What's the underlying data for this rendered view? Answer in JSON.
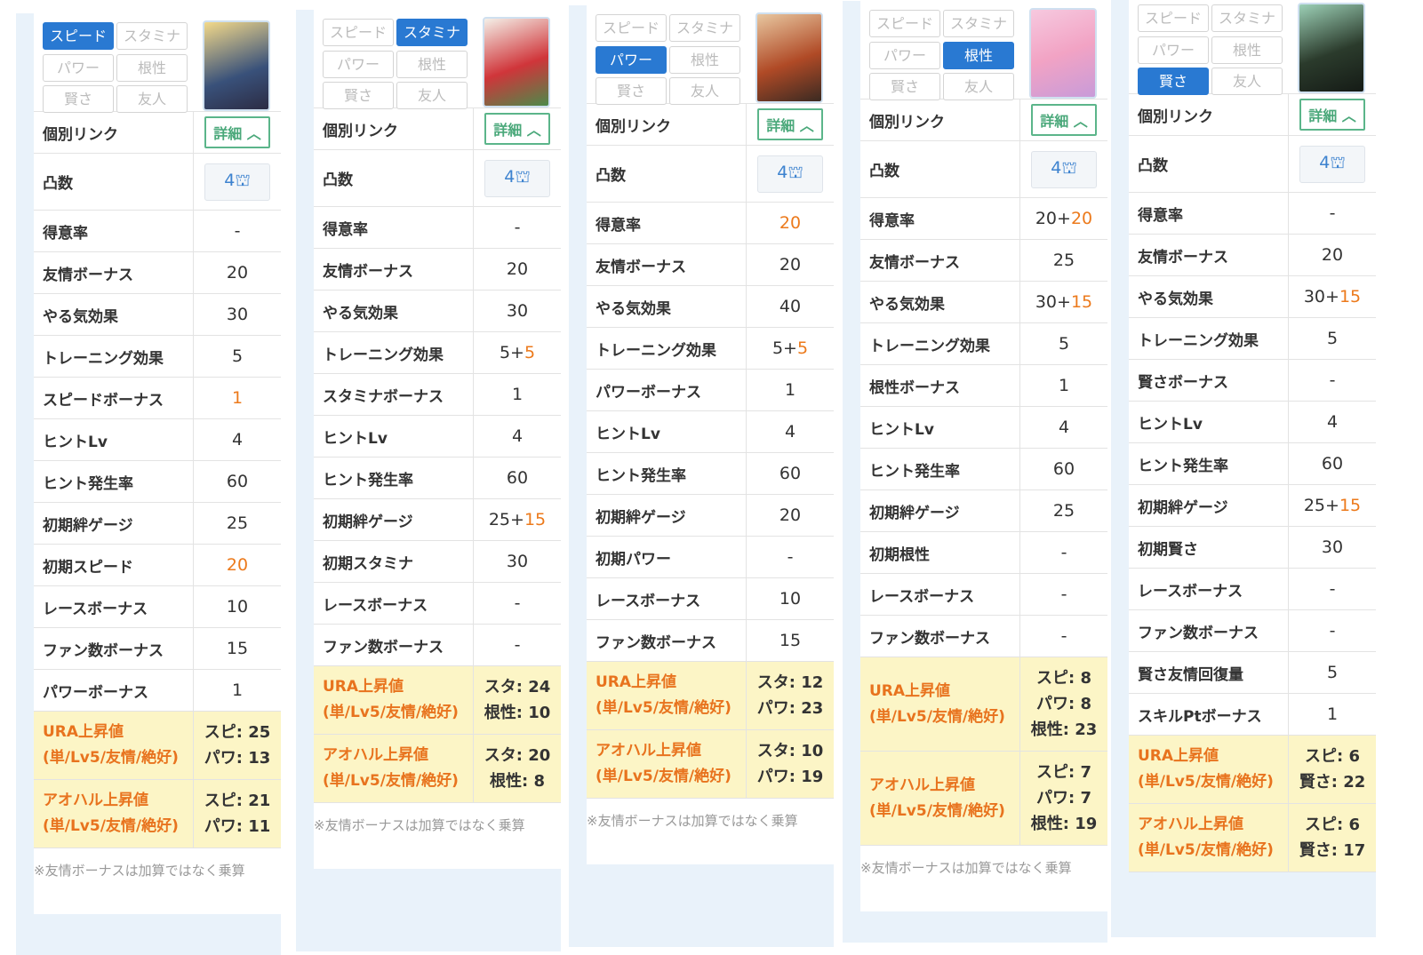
{
  "tabs": [
    "スピード",
    "スタミナ",
    "パワー",
    "根性",
    "賢さ",
    "友人"
  ],
  "link_label": "個別リンク",
  "link_button": "詳細",
  "limit_label": "凸数",
  "panels": [
    {
      "active": 0,
      "limit_break": "4",
      "rows": [
        {
          "label": "得意率",
          "value": "-"
        },
        {
          "label": "友情ボーナス",
          "value": "20"
        },
        {
          "label": "やる気効果",
          "value": "30"
        },
        {
          "label": "トレーニング効果",
          "value": "5"
        },
        {
          "label": "スピードボーナス",
          "accent": "1"
        },
        {
          "label": "ヒントLv",
          "value": "4"
        },
        {
          "label": "ヒント発生率",
          "value": "60"
        },
        {
          "label": "初期絆ゲージ",
          "value": "25"
        },
        {
          "label": "初期スピード",
          "accent": "20"
        },
        {
          "label": "レースボーナス",
          "value": "10"
        },
        {
          "label": "ファン数ボーナス",
          "value": "15"
        },
        {
          "label": "パワーボーナス",
          "value": "1"
        }
      ],
      "bonus": [
        {
          "label": "URA上昇値",
          "sublabel": "(単/Lv5/友情/絶好)",
          "values": [
            "スピ: 25",
            "パワ: 13"
          ]
        },
        {
          "label": "アオハル上昇値",
          "sublabel": "(単/Lv5/友情/絶好)",
          "values": [
            "スピ: 21",
            "パワ: 11"
          ]
        }
      ],
      "note": "※友情ボーナスは加算ではなく乗算"
    },
    {
      "active": 1,
      "limit_break": "4",
      "rows": [
        {
          "label": "得意率",
          "value": "-"
        },
        {
          "label": "友情ボーナス",
          "value": "20"
        },
        {
          "label": "やる気効果",
          "value": "30"
        },
        {
          "label": "トレーニング効果",
          "value": "5+",
          "accent": "5"
        },
        {
          "label": "スタミナボーナス",
          "value": "1"
        },
        {
          "label": "ヒントLv",
          "value": "4"
        },
        {
          "label": "ヒント発生率",
          "value": "60"
        },
        {
          "label": "初期絆ゲージ",
          "value": "25+",
          "accent": "15"
        },
        {
          "label": "初期スタミナ",
          "value": "30"
        },
        {
          "label": "レースボーナス",
          "value": "-"
        },
        {
          "label": "ファン数ボーナス",
          "value": "-"
        }
      ],
      "bonus": [
        {
          "label": "URA上昇値",
          "sublabel": "(単/Lv5/友情/絶好)",
          "values": [
            "スタ: 24",
            "根性: 10"
          ]
        },
        {
          "label": "アオハル上昇値",
          "sublabel": "(単/Lv5/友情/絶好)",
          "values": [
            "スタ: 20",
            "根性: 8"
          ]
        }
      ],
      "note": "※友情ボーナスは加算ではなく乗算"
    },
    {
      "active": 2,
      "limit_break": "4",
      "rows": [
        {
          "label": "得意率",
          "accent": "20"
        },
        {
          "label": "友情ボーナス",
          "value": "20"
        },
        {
          "label": "やる気効果",
          "value": "40"
        },
        {
          "label": "トレーニング効果",
          "value": "5+",
          "accent": "5"
        },
        {
          "label": "パワーボーナス",
          "value": "1"
        },
        {
          "label": "ヒントLv",
          "value": "4"
        },
        {
          "label": "ヒント発生率",
          "value": "60"
        },
        {
          "label": "初期絆ゲージ",
          "value": "20"
        },
        {
          "label": "初期パワー",
          "value": "-"
        },
        {
          "label": "レースボーナス",
          "value": "10"
        },
        {
          "label": "ファン数ボーナス",
          "value": "15"
        }
      ],
      "bonus": [
        {
          "label": "URA上昇値",
          "sublabel": "(単/Lv5/友情/絶好)",
          "values": [
            "スタ: 12",
            "パワ: 23"
          ]
        },
        {
          "label": "アオハル上昇値",
          "sublabel": "(単/Lv5/友情/絶好)",
          "values": [
            "スタ: 10",
            "パワ: 19"
          ]
        }
      ],
      "note": "※友情ボーナスは加算ではなく乗算"
    },
    {
      "active": 3,
      "limit_break": "4",
      "rows": [
        {
          "label": "得意率",
          "value": "20+",
          "accent": "20"
        },
        {
          "label": "友情ボーナス",
          "value": "25"
        },
        {
          "label": "やる気効果",
          "value": "30+",
          "accent": "15"
        },
        {
          "label": "トレーニング効果",
          "value": "5"
        },
        {
          "label": "根性ボーナス",
          "value": "1"
        },
        {
          "label": "ヒントLv",
          "value": "4"
        },
        {
          "label": "ヒント発生率",
          "value": "60"
        },
        {
          "label": "初期絆ゲージ",
          "value": "25"
        },
        {
          "label": "初期根性",
          "value": "-"
        },
        {
          "label": "レースボーナス",
          "value": "-"
        },
        {
          "label": "ファン数ボーナス",
          "value": "-"
        }
      ],
      "bonus": [
        {
          "label": "URA上昇値",
          "sublabel": "(単/Lv5/友情/絶好)",
          "values": [
            "スピ: 8",
            "パワ: 8",
            "根性: 23"
          ]
        },
        {
          "label": "アオハル上昇値",
          "sublabel": "(単/Lv5/友情/絶好)",
          "values": [
            "スピ: 7",
            "パワ: 7",
            "根性: 19"
          ]
        }
      ],
      "note": "※友情ボーナスは加算ではなく乗算"
    },
    {
      "active": 4,
      "limit_break": "4",
      "rows": [
        {
          "label": "得意率",
          "value": "-"
        },
        {
          "label": "友情ボーナス",
          "value": "20"
        },
        {
          "label": "やる気効果",
          "value": "30+",
          "accent": "15"
        },
        {
          "label": "トレーニング効果",
          "value": "5"
        },
        {
          "label": "賢さボーナス",
          "value": "-"
        },
        {
          "label": "ヒントLv",
          "value": "4"
        },
        {
          "label": "ヒント発生率",
          "value": "60"
        },
        {
          "label": "初期絆ゲージ",
          "value": "25+",
          "accent": "15"
        },
        {
          "label": "初期賢さ",
          "value": "30"
        },
        {
          "label": "レースボーナス",
          "value": "-"
        },
        {
          "label": "ファン数ボーナス",
          "value": "-"
        },
        {
          "label": "賢さ友情回復量",
          "value": "5"
        },
        {
          "label": "スキルPtボーナス",
          "value": "1"
        }
      ],
      "bonus": [
        {
          "label": "URA上昇値",
          "sublabel": "(単/Lv5/友情/絶好)",
          "values": [
            "スピ: 6",
            "賢さ: 22"
          ]
        },
        {
          "label": "アオハル上昇値",
          "sublabel": "(単/Lv5/友情/絶好)",
          "values": [
            "スピ: 6",
            "賢さ: 17"
          ]
        }
      ]
    }
  ]
}
